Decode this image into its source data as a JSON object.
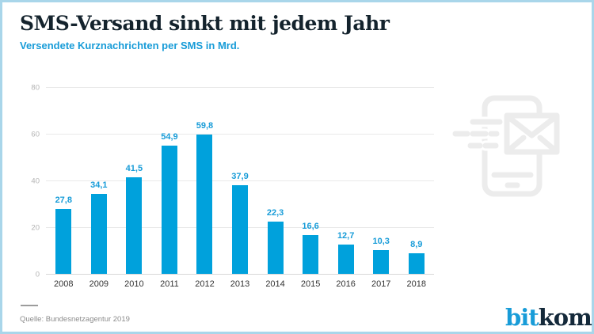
{
  "header": {
    "title": "SMS-Versand sinkt mit jedem Jahr",
    "subtitle": "Versendete Kurznachrichten per SMS in Mrd."
  },
  "chart_data": {
    "type": "bar",
    "title": "SMS-Versand sinkt mit jedem Jahr",
    "subtitle": "Versendete Kurznachrichten per SMS in Mrd.",
    "categories": [
      "2008",
      "2009",
      "2010",
      "2011",
      "2012",
      "2013",
      "2014",
      "2015",
      "2016",
      "2017",
      "2018"
    ],
    "values": [
      27.8,
      34.1,
      41.5,
      54.9,
      59.8,
      37.9,
      22.3,
      16.6,
      12.7,
      10.3,
      8.9
    ],
    "value_labels": [
      "27,8",
      "34,1",
      "41,5",
      "54,9",
      "59,8",
      "37,9",
      "22,3",
      "16,6",
      "12,7",
      "10,3",
      "8,9"
    ],
    "xlabel": "",
    "ylabel": "",
    "ylim": [
      0,
      80
    ],
    "yticks": [
      0,
      20,
      40,
      60,
      80
    ],
    "grid": true,
    "legend_position": "none",
    "bar_color": "#00a1dc",
    "label_color": "#189cd8"
  },
  "icons": {
    "sms_phone_icon": "phone-with-envelope-and-speed-lines",
    "icon_color": "#ececec"
  },
  "footer": {
    "source": "Quelle: Bundesnetzagentur 2019",
    "logo": {
      "part1": "bit",
      "part2": "kom"
    }
  },
  "colors": {
    "accent_blue": "#189cd8",
    "bar_blue": "#00a1dc",
    "title_dark": "#14232d",
    "border_light_blue": "#a9d6ea",
    "grid_gray": "#e9e9e9",
    "source_gray": "#8c8c8c"
  }
}
